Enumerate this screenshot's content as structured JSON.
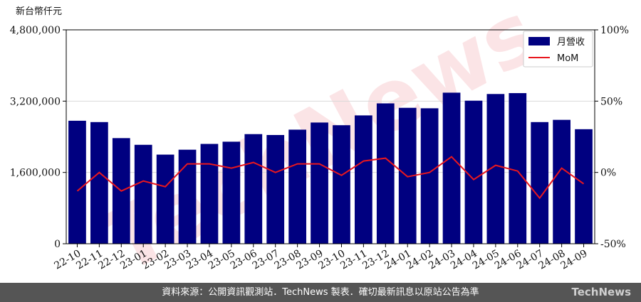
{
  "chart_data": {
    "type": "bar",
    "unit_label": "新台幣仟元",
    "categories": [
      "22-10",
      "22-11",
      "22-12",
      "23-01",
      "23-02",
      "23-03",
      "23-04",
      "23-05",
      "23-06",
      "23-07",
      "23-08",
      "23-09",
      "23-10",
      "23-11",
      "23-12",
      "24-01",
      "24-02",
      "24-03",
      "24-04",
      "24-05",
      "24-06",
      "24-07",
      "24-08",
      "24-09"
    ],
    "series": [
      {
        "name": "月營收",
        "type": "bar",
        "color": "#000080",
        "values": [
          2760000,
          2730000,
          2370000,
          2220000,
          2000000,
          2110000,
          2240000,
          2290000,
          2460000,
          2440000,
          2560000,
          2720000,
          2660000,
          2880000,
          3150000,
          3050000,
          3040000,
          3390000,
          3210000,
          3360000,
          3380000,
          2730000,
          2780000,
          2570000
        ]
      },
      {
        "name": "MoM",
        "type": "line",
        "axis": "right",
        "color": "#e8171e",
        "values": [
          -13,
          0,
          -13,
          -6,
          -10,
          6,
          6,
          3,
          7,
          0,
          6,
          6,
          -2,
          8,
          10,
          -3,
          0,
          11,
          -5,
          5,
          1,
          -18,
          3,
          -8
        ]
      }
    ],
    "y_left": {
      "ylim": [
        0,
        4800000
      ],
      "ticks": [
        "0",
        "1,600,000",
        "3,200,000",
        "4,800,000"
      ],
      "tick_values": [
        0,
        1600000,
        3200000,
        4800000
      ]
    },
    "y_right": {
      "ylim": [
        -50,
        100
      ],
      "ticks": [
        "-50%",
        "0%",
        "50%",
        "100%"
      ],
      "tick_values": [
        -50,
        0,
        50,
        100
      ]
    },
    "grid": true,
    "legend_placement": "top-right",
    "watermark": "TechNews"
  },
  "footer": {
    "source_text": "資料來源：公開資訊觀測站．TechNews 製表．確切最新訊息以原站公告為準",
    "logo_text": "TechNews"
  }
}
